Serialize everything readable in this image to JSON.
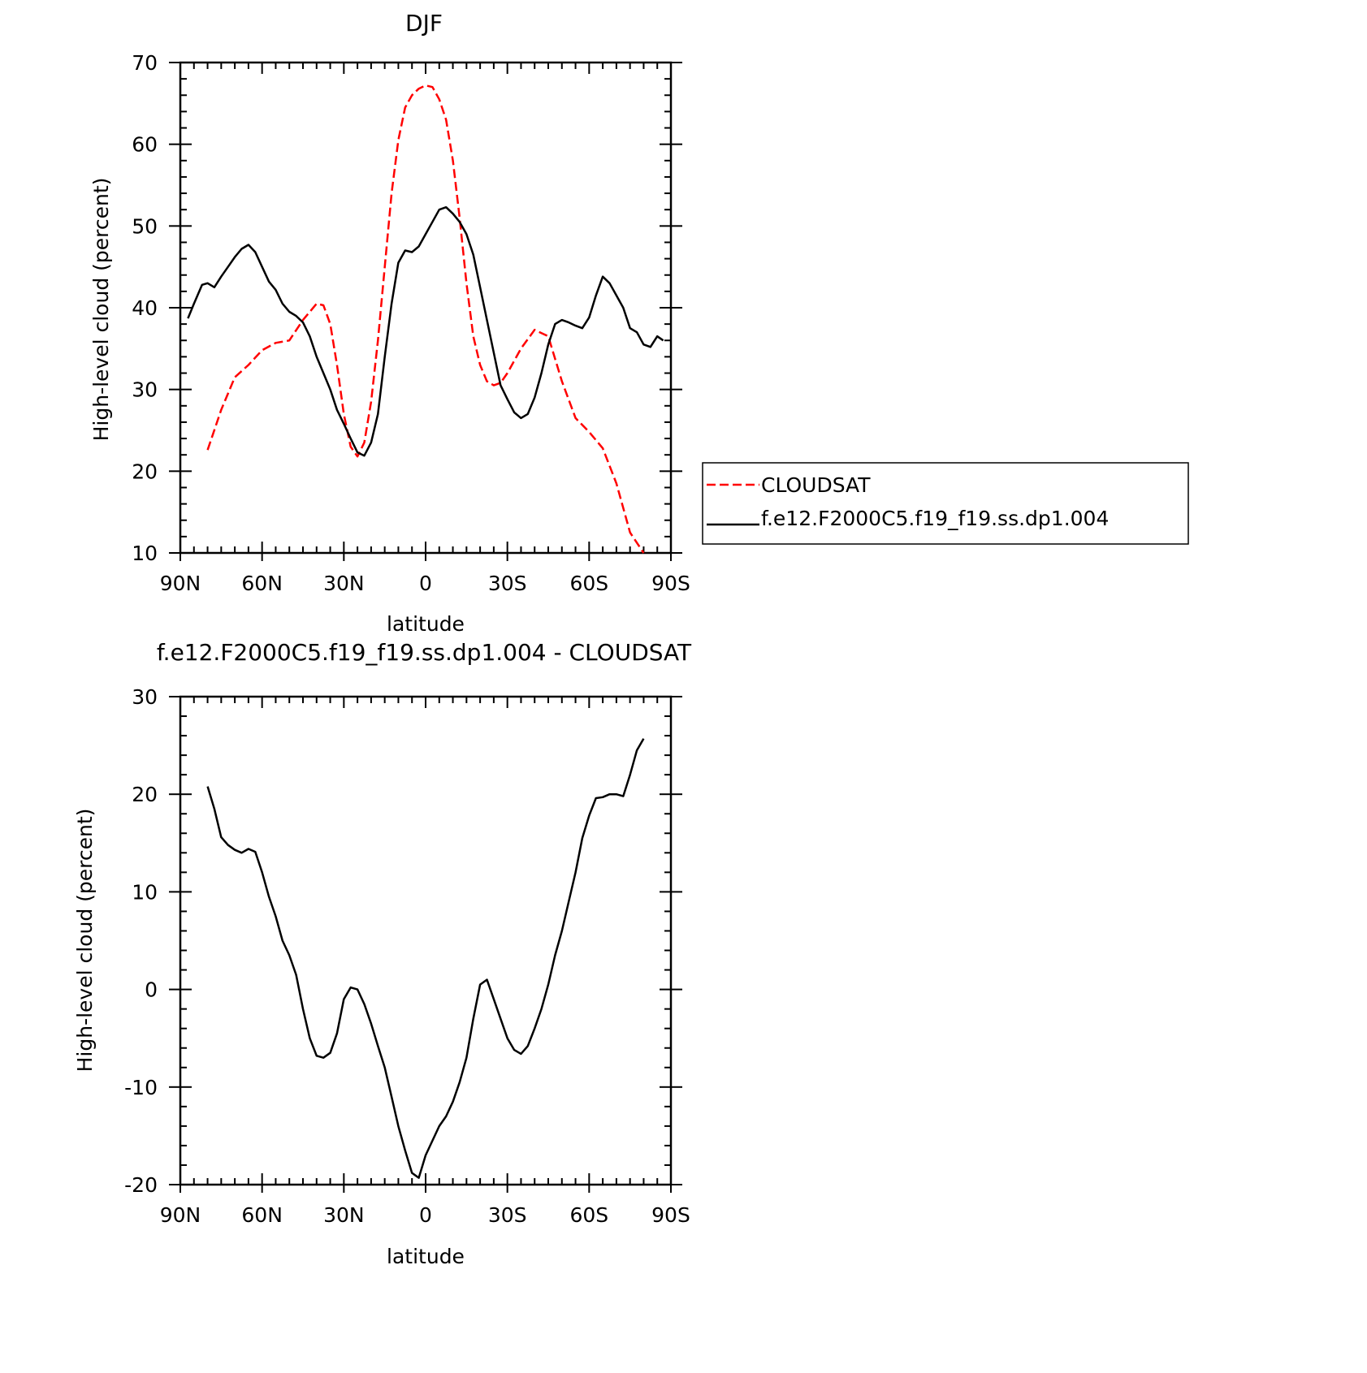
{
  "chart_data": [
    {
      "type": "line",
      "title": "DJF",
      "xlabel": "latitude",
      "ylabel": "High-level cloud (percent)",
      "xlim": [
        90,
        -90
      ],
      "ylim": [
        10,
        70
      ],
      "x_ticks": [
        90,
        60,
        30,
        0,
        -30,
        -60,
        -90
      ],
      "x_tick_labels": [
        "90N",
        "60N",
        "30N",
        "0",
        "30S",
        "60S",
        "90S"
      ],
      "y_ticks": [
        10,
        20,
        30,
        40,
        50,
        60,
        70
      ],
      "y_tick_labels": [
        "10",
        "20",
        "30",
        "40",
        "50",
        "60",
        "70"
      ],
      "legend": "right",
      "series": [
        {
          "name": "CLOUDSAT",
          "color": "#ff0000",
          "style": "dashed",
          "x": [
            80,
            75,
            70,
            65,
            60,
            55,
            50,
            45,
            40,
            37.5,
            35,
            32.5,
            30,
            27.5,
            25,
            22.5,
            20,
            17.5,
            15,
            12.5,
            10,
            7.5,
            5,
            2.5,
            0,
            -2.5,
            -5,
            -7.5,
            -10,
            -12.5,
            -15,
            -17.5,
            -20,
            -22.5,
            -25,
            -27.5,
            -30,
            -35,
            -40,
            -45,
            -50,
            -55,
            -60,
            -65,
            -70,
            -75,
            -80
          ],
          "y": [
            22.6,
            27.5,
            31.5,
            33.0,
            34.8,
            35.7,
            36.0,
            38.5,
            40.5,
            40.3,
            38.0,
            33.0,
            27.0,
            23.0,
            21.8,
            23.5,
            28.5,
            36.0,
            45.0,
            54.0,
            60.5,
            64.5,
            66.0,
            66.8,
            67.2,
            67.0,
            65.5,
            63.0,
            58.0,
            51.0,
            43.0,
            36.5,
            33.0,
            31.0,
            30.5,
            30.8,
            32.0,
            35.0,
            37.3,
            36.5,
            31.0,
            26.5,
            24.8,
            22.8,
            18.5,
            12.5,
            10.0
          ]
        },
        {
          "name": "f.e12.F2000C5.f19_f19.ss.dp1.004",
          "color": "#000000",
          "style": "solid",
          "x": [
            87.2,
            85,
            82,
            80,
            77.5,
            75,
            72.5,
            70,
            67.5,
            65,
            62.5,
            60,
            57.5,
            55,
            52.5,
            50,
            47.5,
            45,
            42.5,
            40,
            37.5,
            35,
            32.5,
            30,
            27.5,
            25,
            22.5,
            20,
            17.5,
            15,
            12.5,
            10,
            7.5,
            5,
            2.5,
            0,
            -2.5,
            -5,
            -7.5,
            -10,
            -12.5,
            -15,
            -17.5,
            -20,
            -22.5,
            -25,
            -27.5,
            -30,
            -32.5,
            -35,
            -37.5,
            -40,
            -42.5,
            -45,
            -47.5,
            -50,
            -52.5,
            -55,
            -57.5,
            -60,
            -62.5,
            -65,
            -67.5,
            -70,
            -72.5,
            -75,
            -77.5,
            -80,
            -82.5,
            -85,
            -87.2
          ],
          "y": [
            38.7,
            40.5,
            42.8,
            43.0,
            42.5,
            43.8,
            45.0,
            46.2,
            47.2,
            47.7,
            46.8,
            45.0,
            43.2,
            42.2,
            40.5,
            39.5,
            39.0,
            38.2,
            36.5,
            34.0,
            32.0,
            30.0,
            27.5,
            25.8,
            24.0,
            22.3,
            21.9,
            23.5,
            27.0,
            34.0,
            40.5,
            45.5,
            47.0,
            46.8,
            47.5,
            49.0,
            50.5,
            52.0,
            52.3,
            51.5,
            50.5,
            49.0,
            46.5,
            42.5,
            38.5,
            34.5,
            30.5,
            28.8,
            27.2,
            26.5,
            27.0,
            29.0,
            32.0,
            35.5,
            38.0,
            38.5,
            38.2,
            37.8,
            37.5,
            38.8,
            41.5,
            43.8,
            43.0,
            41.5,
            40.0,
            37.5,
            37.0,
            35.5,
            35.2,
            36.5,
            36.0
          ]
        }
      ]
    },
    {
      "type": "line",
      "title": "f.e12.F2000C5.f19_f19.ss.dp1.004 - CLOUDSAT",
      "xlabel": "latitude",
      "ylabel": "High-level cloud (percent)",
      "xlim": [
        90,
        -90
      ],
      "ylim": [
        -20,
        30
      ],
      "x_ticks": [
        90,
        60,
        30,
        0,
        -30,
        -60,
        -90
      ],
      "x_tick_labels": [
        "90N",
        "60N",
        "30N",
        "0",
        "30S",
        "60S",
        "90S"
      ],
      "y_ticks": [
        -20,
        -10,
        0,
        10,
        20,
        30
      ],
      "y_tick_labels": [
        "-20",
        "-10",
        "0",
        "10",
        "20",
        "30"
      ],
      "series": [
        {
          "color": "#000000",
          "style": "solid",
          "x": [
            80,
            77.5,
            75,
            72.5,
            70,
            67.5,
            65,
            62.5,
            60,
            57.5,
            55,
            52.5,
            50,
            47.5,
            45,
            42.5,
            40,
            37.5,
            35,
            32.5,
            30,
            27.5,
            25,
            22.5,
            20,
            17.5,
            15,
            12.5,
            10,
            7.5,
            5,
            2.5,
            0,
            -2.5,
            -5,
            -7.5,
            -10,
            -12.5,
            -15,
            -17.5,
            -20,
            -22.5,
            -25,
            -27.5,
            -30,
            -32.5,
            -35,
            -37.5,
            -40,
            -42.5,
            -45,
            -47.5,
            -50,
            -52.5,
            -55,
            -57.5,
            -60,
            -62.5,
            -65,
            -67.5,
            -70,
            -72.5,
            -75,
            -77.5,
            -80
          ],
          "y": [
            20.8,
            18.5,
            15.6,
            14.8,
            14.3,
            14.0,
            14.4,
            14.1,
            12.0,
            9.5,
            7.5,
            5.0,
            3.5,
            1.5,
            -2.0,
            -5.0,
            -6.8,
            -7.0,
            -6.5,
            -4.5,
            -1.0,
            0.2,
            0.0,
            -1.5,
            -3.5,
            -5.8,
            -8.0,
            -11.0,
            -14.0,
            -16.5,
            -18.8,
            -19.3,
            -17.0,
            -15.5,
            -14.0,
            -13.0,
            -11.5,
            -9.5,
            -7.0,
            -3.0,
            0.5,
            1.0,
            -1.0,
            -3.0,
            -5.0,
            -6.2,
            -6.6,
            -5.8,
            -4.0,
            -2.0,
            0.5,
            3.5,
            6.0,
            9.0,
            12.0,
            15.5,
            17.8,
            19.6,
            19.7,
            20.0,
            20.0,
            19.8,
            22.0,
            24.5,
            25.7
          ]
        }
      ]
    }
  ]
}
